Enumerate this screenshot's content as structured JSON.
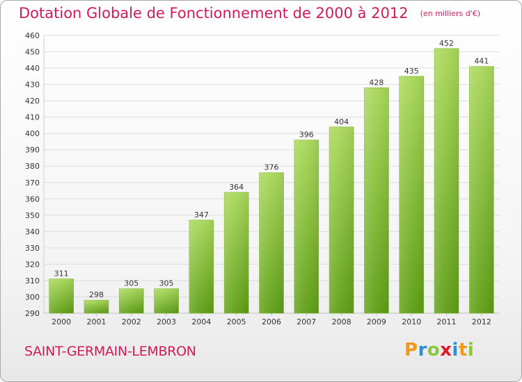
{
  "header": {
    "title": "Dotation Globale de Fonctionnement de 2000 à 2012",
    "subtitle": "(en milliers d'€)"
  },
  "footer": {
    "commune": "SAINT-GERMAIN-LEMBRON",
    "logo_letters": [
      "P",
      "r",
      "o",
      "x",
      "i",
      "t",
      "i"
    ],
    "logo_colors": [
      "#f09a1a",
      "#2b8fd6",
      "#8cc63e",
      "#e2162b",
      "#2b8fd6",
      "#f09a1a",
      "#8cc63e"
    ]
  },
  "colors": {
    "bar_top": "#a9d85a",
    "bar_bottom": "#5e9e14",
    "grid": "#dcdcdc",
    "axis_text": "#333333",
    "accent": "#d2195a"
  },
  "chart_data": {
    "type": "bar",
    "title": "Dotation Globale de Fonctionnement de 2000 à 2012",
    "subtitle": "(en milliers d'€)",
    "categories": [
      "2000",
      "2001",
      "2002",
      "2003",
      "2004",
      "2005",
      "2006",
      "2007",
      "2008",
      "2009",
      "2010",
      "2011",
      "2012"
    ],
    "values": [
      311,
      298,
      305,
      305,
      347,
      364,
      376,
      396,
      404,
      428,
      435,
      452,
      441
    ],
    "ylim": [
      290,
      460
    ],
    "yticks": [
      290,
      300,
      310,
      320,
      330,
      340,
      350,
      360,
      370,
      380,
      390,
      400,
      410,
      420,
      430,
      440,
      450,
      460
    ],
    "grid": true,
    "data_labels": true
  }
}
